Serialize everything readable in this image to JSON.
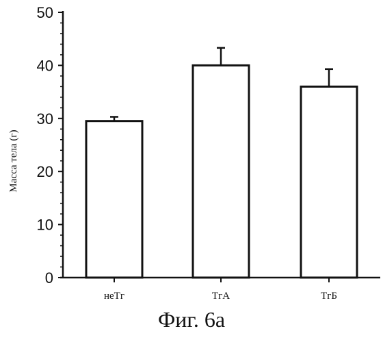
{
  "caption": "Фиг. 6а",
  "chart_data": {
    "type": "bar",
    "categories": [
      "неТг",
      "ТгА",
      "ТгБ"
    ],
    "values": [
      29.5,
      40,
      36
    ],
    "errors": [
      0.8,
      3.3,
      3.3
    ],
    "ylabel": "Масса тела (г)",
    "xlabel": "",
    "title": "",
    "ylim": [
      0,
      50
    ],
    "yticks": [
      0,
      10,
      20,
      30,
      40,
      50
    ],
    "grid": false,
    "bar_color": "#ffffff",
    "stroke_color": "#111111"
  }
}
